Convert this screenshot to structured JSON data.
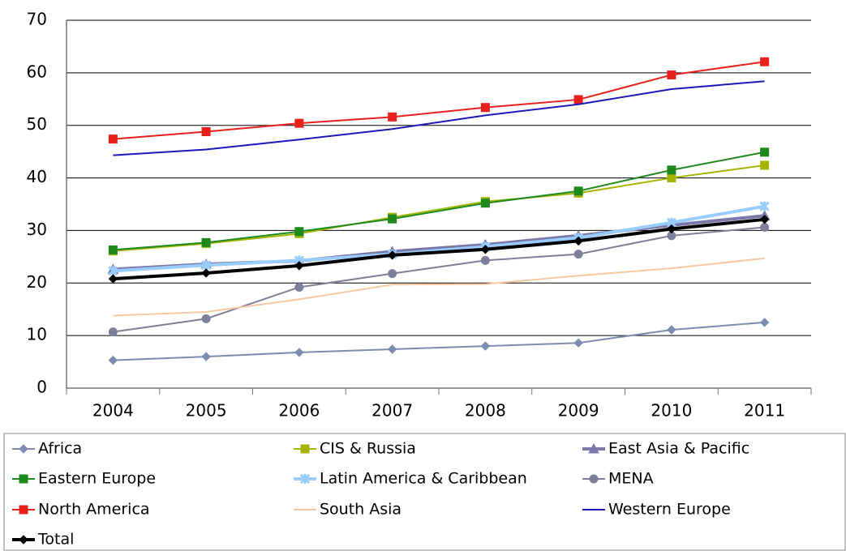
{
  "chart_data": {
    "type": "line",
    "categories": [
      "2004",
      "2005",
      "2006",
      "2007",
      "2008",
      "2009",
      "2010",
      "2011"
    ],
    "ylim": [
      0,
      70
    ],
    "yticks": [
      0,
      10,
      20,
      30,
      40,
      50,
      60,
      70
    ],
    "grid": true,
    "legend": "bottom",
    "series": [
      {
        "name": "Africa",
        "color": "#7c8cb0",
        "marker": "diamond",
        "width": 2,
        "values": [
          5.3,
          6.0,
          6.8,
          7.4,
          8.0,
          8.6,
          11.1,
          12.5
        ]
      },
      {
        "name": "CIS & Russia",
        "color": "#a6b400",
        "marker": "square",
        "width": 2,
        "values": [
          26.1,
          27.5,
          29.4,
          32.5,
          35.5,
          37.1,
          40.0,
          42.4
        ]
      },
      {
        "name": "East Asia & Pacific",
        "color": "#7a78a8",
        "marker": "triangle",
        "width": 4,
        "values": [
          22.6,
          23.6,
          24.2,
          26.0,
          27.3,
          29.0,
          31.0,
          32.8
        ]
      },
      {
        "name": "Eastern Europe",
        "color": "#1e8a1e",
        "marker": "square",
        "width": 2,
        "values": [
          26.3,
          27.7,
          29.8,
          32.2,
          35.2,
          37.5,
          41.5,
          44.9
        ]
      },
      {
        "name": "Latin America & Caribbean",
        "color": "#99ccff",
        "marker": "star",
        "width": 4,
        "values": [
          22.3,
          23.4,
          24.3,
          25.5,
          26.9,
          28.6,
          31.5,
          34.6
        ]
      },
      {
        "name": "MENA",
        "color": "#7f7f9c",
        "marker": "circle",
        "width": 2,
        "values": [
          10.7,
          13.2,
          19.2,
          21.8,
          24.3,
          25.5,
          29.0,
          30.6
        ]
      },
      {
        "name": "North America",
        "color": "#e8201c",
        "marker": "square",
        "width": 2,
        "values": [
          47.4,
          48.8,
          50.4,
          51.6,
          53.4,
          54.9,
          59.6,
          62.1
        ]
      },
      {
        "name": "South Asia",
        "color": "#f8c8a0",
        "marker": "none",
        "width": 2,
        "values": [
          13.8,
          14.5,
          16.9,
          19.7,
          19.8,
          21.4,
          22.8,
          24.7
        ]
      },
      {
        "name": "Western Europe",
        "color": "#1a1ab8",
        "marker": "none",
        "width": 2,
        "values": [
          44.3,
          45.4,
          47.3,
          49.3,
          51.9,
          54.0,
          56.9,
          58.4
        ]
      },
      {
        "name": "Total",
        "color": "#000000",
        "marker": "diamond",
        "width": 4,
        "values": [
          20.8,
          21.9,
          23.3,
          25.3,
          26.4,
          28.0,
          30.3,
          32.1
        ]
      }
    ]
  }
}
